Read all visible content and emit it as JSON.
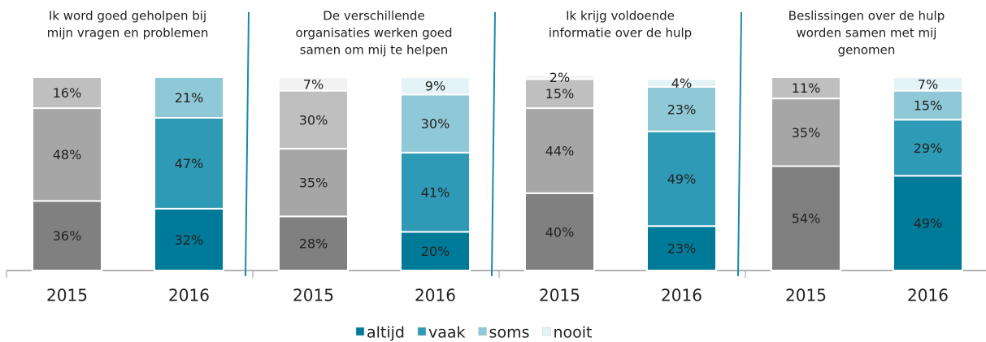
{
  "chart_data": {
    "type": "stacked_bar",
    "ylim": [
      0,
      100
    ],
    "legend": "bottom",
    "series": [
      {
        "name": "altijd",
        "color": "#007a99",
        "past_color": "#808080"
      },
      {
        "name": "vaak",
        "color": "#2e9ab5",
        "past_color": "#a6a6a6"
      },
      {
        "name": "soms",
        "color": "#8fc8d6",
        "past_color": "#bfbfbf"
      },
      {
        "name": "nooit",
        "color": "#e4f3f6",
        "past_color": "#f2f2f2"
      }
    ],
    "panels": [
      {
        "title": [
          "Ik word goed geholpen bij",
          "mijn vragen en problemen"
        ],
        "categories": [
          "2015",
          "2016"
        ],
        "series": [
          {
            "values": [
              36,
              32
            ]
          },
          {
            "values": [
              48,
              47
            ]
          },
          {
            "values": [
              16,
              21
            ]
          },
          {
            "values": [
              null,
              null
            ]
          }
        ]
      },
      {
        "title": [
          "De verschillende",
          "organisaties werken goed",
          "samen om mij te helpen"
        ],
        "categories": [
          "2015",
          "2016"
        ],
        "series": [
          {
            "values": [
              28,
              20
            ]
          },
          {
            "values": [
              35,
              41
            ]
          },
          {
            "values": [
              30,
              30
            ]
          },
          {
            "values": [
              7,
              9
            ]
          }
        ]
      },
      {
        "title": [
          "Ik krijg voldoende",
          "informatie over de hulp"
        ],
        "categories": [
          "2015",
          "2016"
        ],
        "series": [
          {
            "values": [
              40,
              23
            ]
          },
          {
            "values": [
              44,
              49
            ]
          },
          {
            "values": [
              15,
              23
            ]
          },
          {
            "values": [
              2,
              4
            ]
          }
        ]
      },
      {
        "title": [
          "Beslissingen over de hulp",
          "worden samen met mij",
          "genomen"
        ],
        "categories": [
          "2015",
          "2016"
        ],
        "series": [
          {
            "values": [
              54,
              49
            ]
          },
          {
            "values": [
              35,
              29
            ]
          },
          {
            "values": [
              11,
              15
            ]
          },
          {
            "values": [
              null,
              7
            ]
          }
        ]
      }
    ],
    "value_labels_suffix_note": null
  }
}
